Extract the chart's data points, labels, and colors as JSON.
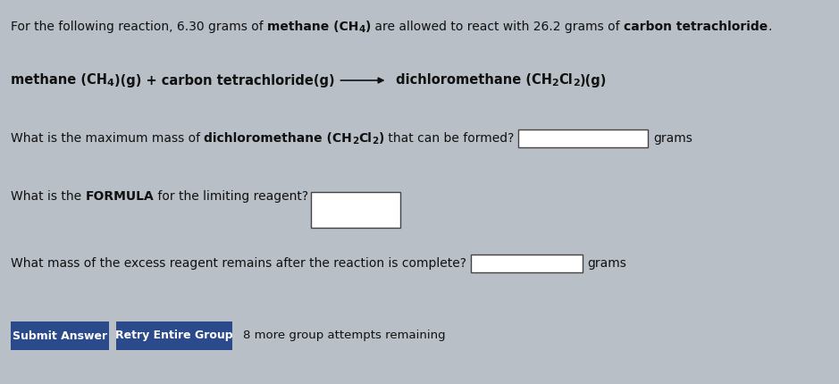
{
  "bg_color": "#b8bfc7",
  "panel_color": "#c5ccd4",
  "text_color": "#111111",
  "input_box_color": "#ffffff",
  "input_border_color": "#444444",
  "btn_color": "#2b4a8b",
  "btn_text_color": "#ffffff",
  "footer_text": "8 more group attempts remaining",
  "btn1_text": "Submit Answer",
  "btn2_text": "Retry Entire Group",
  "body_fontsize": 10.0,
  "small_fontsize": 7.5,
  "reaction_fontsize": 10.5,
  "reaction_small_fontsize": 8.0
}
